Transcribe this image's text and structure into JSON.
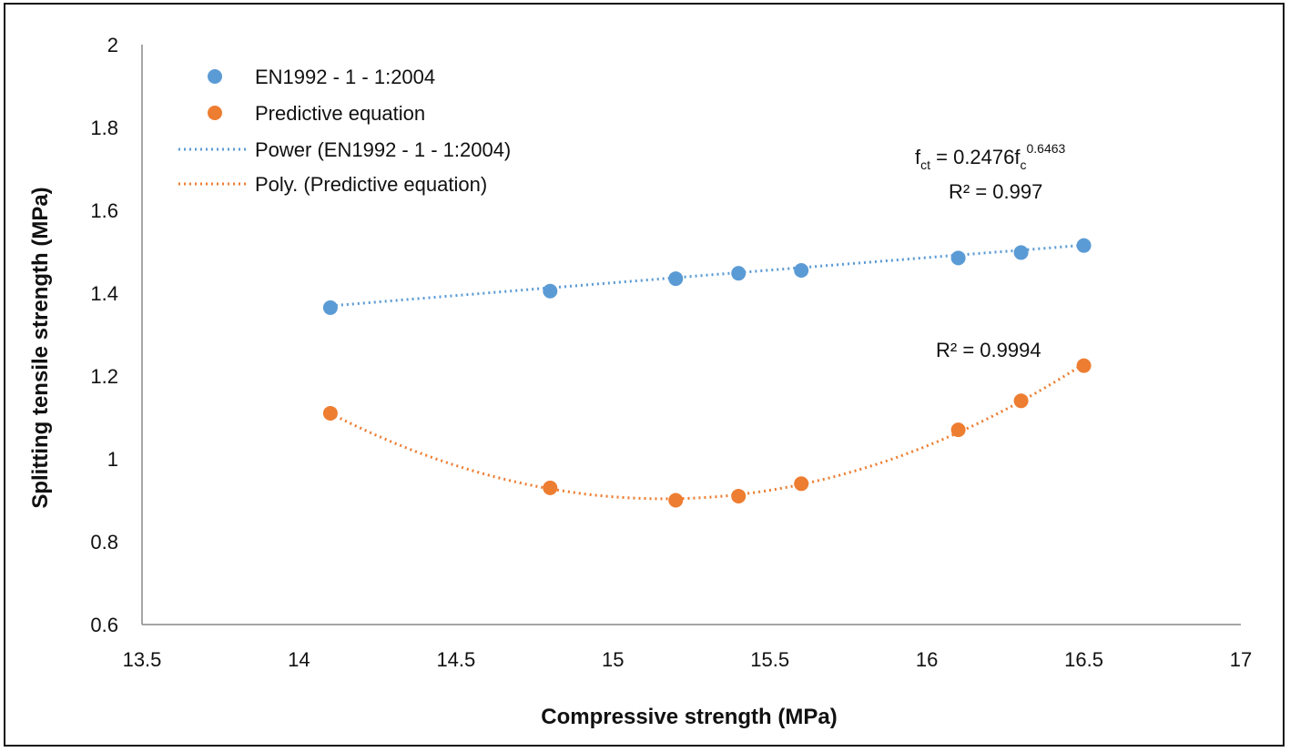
{
  "chart_data": {
    "type": "scatter",
    "xlabel": "Compressive strength (MPa)",
    "ylabel": "Splitting tensile strength (MPa)",
    "xlim": [
      13.5,
      17
    ],
    "ylim": [
      0.6,
      2
    ],
    "xticks": [
      "13.5",
      "14",
      "14.5",
      "15",
      "15.5",
      "16",
      "16.5",
      "17"
    ],
    "yticks": [
      "0.6",
      "0.8",
      "1",
      "1.2",
      "1.4",
      "1.6",
      "1.8",
      "2"
    ],
    "grid": false,
    "legend_position": "top-left",
    "series": [
      {
        "name": "EN1992 - 1 - 1:2004",
        "color": "#5b9bd5",
        "x": [
          14.1,
          14.8,
          15.2,
          15.4,
          15.6,
          16.1,
          16.3,
          16.5
        ],
        "y": [
          1.365,
          1.405,
          1.435,
          1.448,
          1.455,
          1.485,
          1.498,
          1.515
        ]
      },
      {
        "name": "Predictive equation",
        "color": "#ed7d31",
        "x": [
          14.1,
          14.8,
          15.2,
          15.4,
          15.6,
          16.1,
          16.3,
          16.5
        ],
        "y": [
          1.11,
          0.93,
          0.9,
          0.91,
          0.94,
          1.07,
          1.14,
          1.225
        ]
      }
    ],
    "trendlines": [
      {
        "name": "Power (EN1992 - 1 - 1:2004)",
        "color": "#5b9bd5",
        "type": "power",
        "a": 0.2476,
        "b": 0.6463
      },
      {
        "name": "Poly. (Predictive equation)",
        "color": "#ed7d31",
        "type": "poly2"
      }
    ],
    "annotations": {
      "power_eq_prefix": "f",
      "power_eq_sub1": "ct",
      "power_eq_mid": " = 0.2476f",
      "power_eq_sub2": "c",
      "power_eq_exp": "0.6463",
      "power_r2": "R² = 0.997",
      "poly_r2": "R² = 0.9994"
    }
  }
}
